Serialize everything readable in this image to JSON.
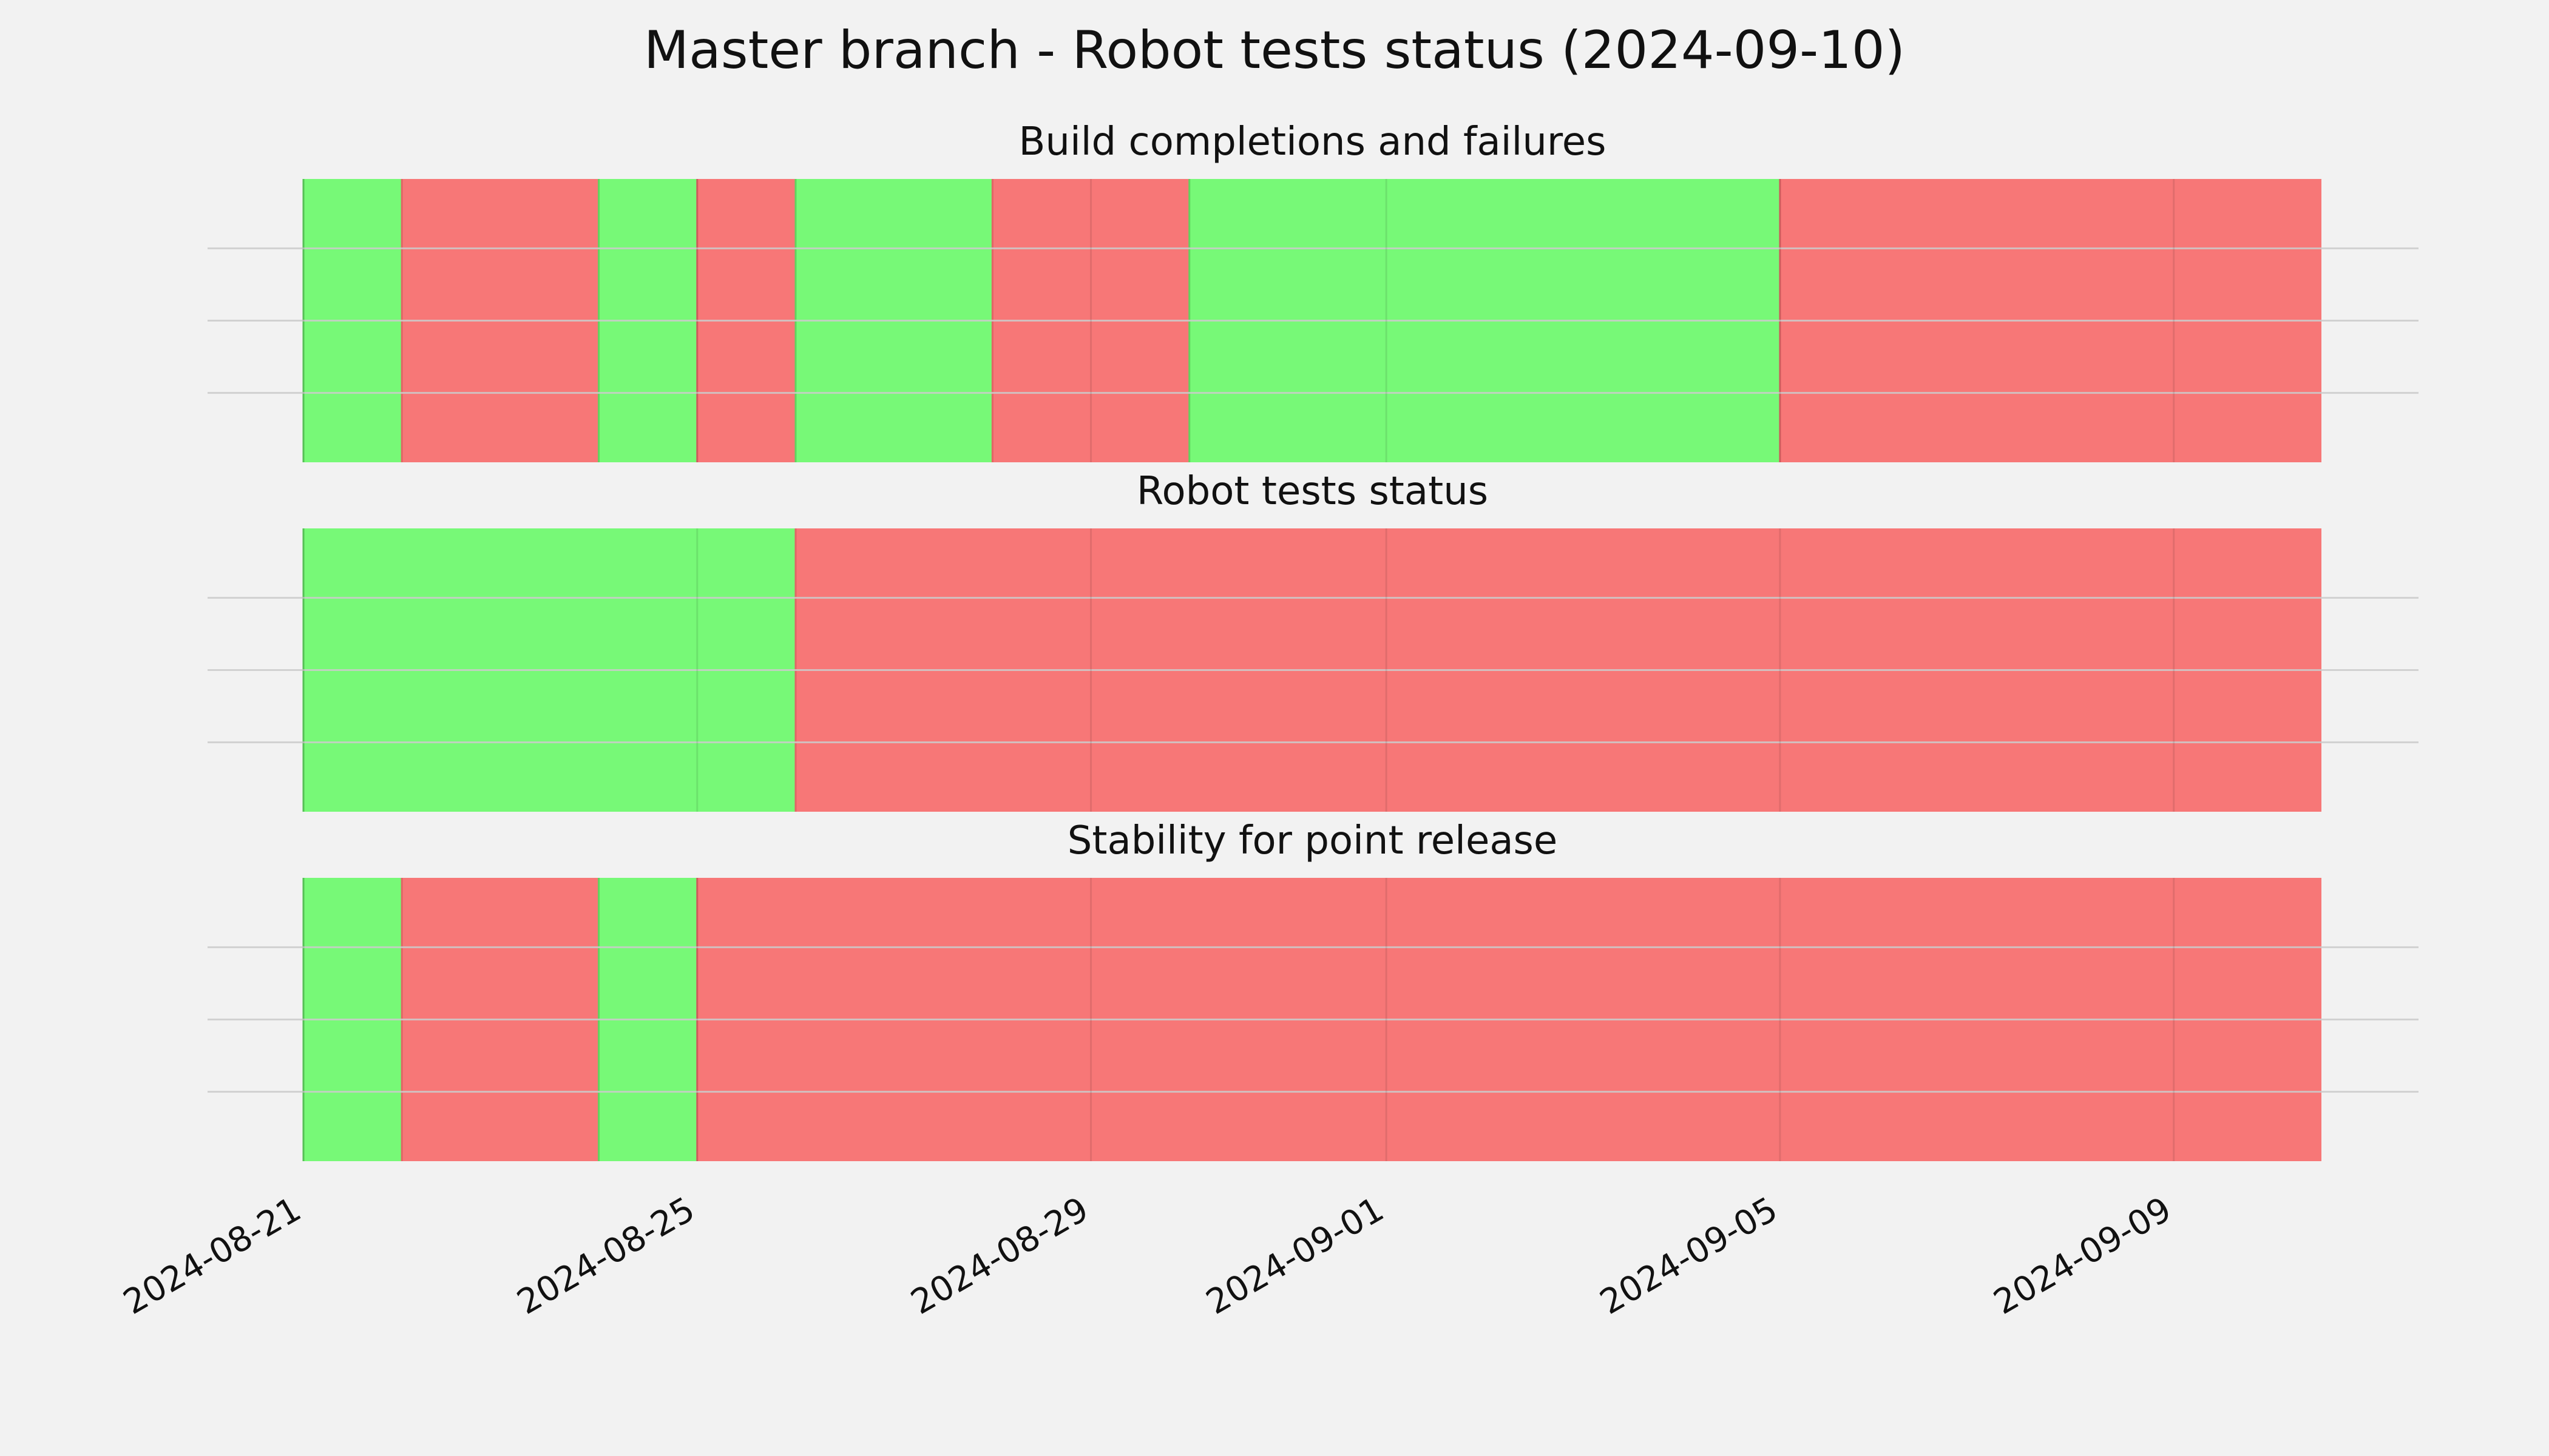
{
  "chart_data": {
    "title": "Master branch - Robot tests status (2024-09-10)",
    "type": "timeline",
    "x_axis": {
      "type": "date",
      "range": [
        "2024-08-21",
        "2024-09-10T12:00"
      ],
      "ticks": [
        "2024-08-21",
        "2024-08-25",
        "2024-08-29",
        "2024-09-01",
        "2024-09-05",
        "2024-09-09"
      ]
    },
    "y_axis": {
      "ticks_shown": false
    },
    "grid": true,
    "colors": {
      "pass": "#77f977",
      "fail": "#f77777",
      "grid": "#cbcbcb",
      "background": "#f2f2f2"
    },
    "panels": [
      {
        "title": "Build completions and failures",
        "segments": [
          {
            "start": "2024-08-21T00:00",
            "end": "2024-08-22T00:00",
            "status": "pass"
          },
          {
            "start": "2024-08-22T00:00",
            "end": "2024-08-24T00:00",
            "status": "fail"
          },
          {
            "start": "2024-08-24T00:00",
            "end": "2024-08-25T00:00",
            "status": "pass"
          },
          {
            "start": "2024-08-25T00:00",
            "end": "2024-08-26T00:00",
            "status": "fail"
          },
          {
            "start": "2024-08-26T00:00",
            "end": "2024-08-28T00:00",
            "status": "pass"
          },
          {
            "start": "2024-08-28T00:00",
            "end": "2024-08-30T00:00",
            "status": "fail"
          },
          {
            "start": "2024-08-30T00:00",
            "end": "2024-09-05T00:00",
            "status": "pass"
          },
          {
            "start": "2024-09-05T00:00",
            "end": "2024-09-10T12:00",
            "status": "fail"
          }
        ]
      },
      {
        "title": "Robot tests status",
        "segments": [
          {
            "start": "2024-08-21T00:00",
            "end": "2024-08-26T00:00",
            "status": "pass"
          },
          {
            "start": "2024-08-26T00:00",
            "end": "2024-09-10T12:00",
            "status": "fail"
          }
        ]
      },
      {
        "title": "Stability for point release",
        "segments": [
          {
            "start": "2024-08-21T00:00",
            "end": "2024-08-22T00:00",
            "status": "pass"
          },
          {
            "start": "2024-08-22T00:00",
            "end": "2024-08-24T00:00",
            "status": "fail"
          },
          {
            "start": "2024-08-24T00:00",
            "end": "2024-08-25T00:00",
            "status": "pass"
          },
          {
            "start": "2024-08-25T00:00",
            "end": "2024-09-10T12:00",
            "status": "fail"
          }
        ]
      }
    ]
  }
}
